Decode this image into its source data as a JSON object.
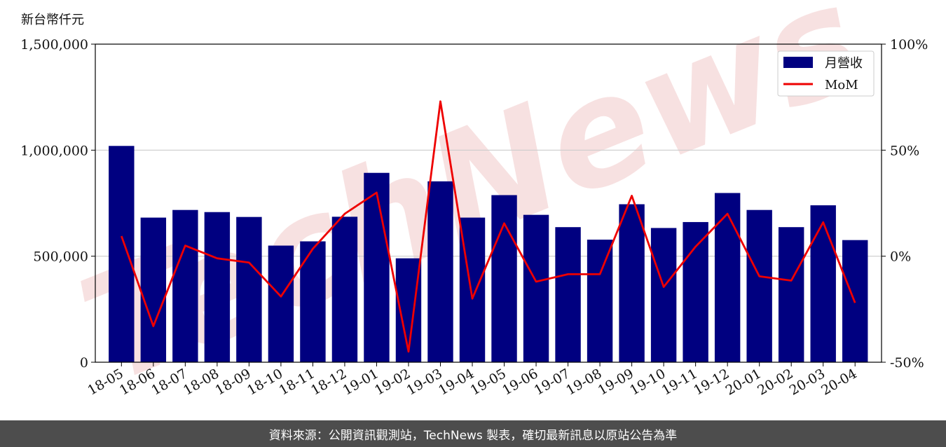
{
  "unit_label": "新台幣仟元",
  "footer_text": "資料來源：公開資訊觀測站，TechNews 製表，確切最新訊息以原站公告為準",
  "watermark": "TechNews",
  "colors": {
    "bar": "#000080",
    "line": "#ee0000",
    "grid": "#cccccc",
    "watermark": "#f2c9c9"
  },
  "chart_data": {
    "type": "bar",
    "categories": [
      "18-05",
      "18-06",
      "18-07",
      "18-08",
      "18-09",
      "18-10",
      "18-11",
      "18-12",
      "19-01",
      "19-02",
      "19-03",
      "19-04",
      "19-05",
      "19-06",
      "19-07",
      "19-08",
      "19-09",
      "19-10",
      "19-11",
      "19-12",
      "20-01",
      "20-02",
      "20-03",
      "20-04"
    ],
    "series": [
      {
        "name": "月營收",
        "type": "bar",
        "axis": "left",
        "values": [
          1020000,
          682000,
          718000,
          708000,
          685000,
          550000,
          570000,
          686000,
          893000,
          490000,
          853000,
          682000,
          788000,
          695000,
          637000,
          578000,
          745000,
          633000,
          661000,
          798000,
          718000,
          637000,
          740000,
          576000
        ]
      },
      {
        "name": "MoM",
        "type": "line",
        "axis": "right",
        "values": [
          9.5,
          -33,
          5,
          -1,
          -3,
          -19,
          3.5,
          20,
          30,
          -45,
          73,
          -20,
          15.5,
          -12,
          -8.5,
          -8.5,
          28.5,
          -14.5,
          4.5,
          20,
          -9.5,
          -11.5,
          16,
          -22
        ]
      }
    ],
    "y_left": {
      "ylim": [
        0,
        1500000
      ],
      "ticks": [
        0,
        500000,
        1000000,
        1500000
      ],
      "tick_labels": [
        "0",
        "500,000",
        "1,000,000",
        "1,500,000"
      ]
    },
    "y_right": {
      "ylim": [
        -50,
        100
      ],
      "ticks": [
        -50,
        0,
        50,
        100
      ],
      "tick_labels": [
        "-50%",
        "0%",
        "50%",
        "100%"
      ]
    },
    "grid": "horizontal",
    "legend_position": "top-right"
  }
}
